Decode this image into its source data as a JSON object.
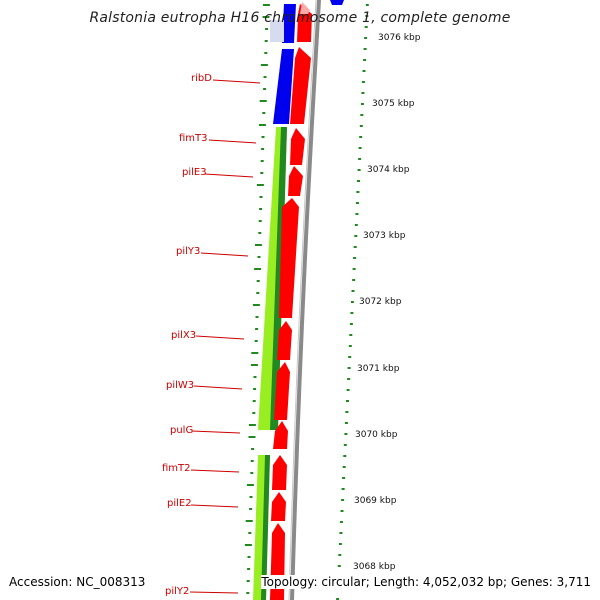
{
  "title": "Ralstonia eutropha H16 chromosome 1, complete genome",
  "footer": {
    "accession": "Accession: NC_008313",
    "summary": "Topology: circular; Length: 4,052,032 bp; Genes: 3,711"
  },
  "colors": {
    "forward_cds": "#ff0000",
    "reverse_cds_blue": "#0000ee",
    "gc_light": "#99ee22",
    "gc_dark": "#228822",
    "ticks": "#228822",
    "backbone": "#888888",
    "label_text": "#cc0000"
  },
  "gene_labels": [
    "ribD",
    "fimT3",
    "pilE3",
    "pilY3",
    "pilX3",
    "pilW3",
    "pulG",
    "fimT2",
    "pilE2",
    "pilY2"
  ],
  "kbp_ticks": [
    "3076 kbp",
    "3075 kbp",
    "3074 kbp",
    "3073 kbp",
    "3072 kbp",
    "3071 kbp",
    "3070 kbp",
    "3069 kbp",
    "3068 kbp"
  ]
}
